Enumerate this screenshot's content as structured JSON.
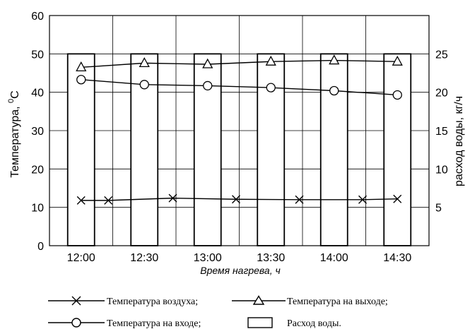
{
  "chart_data": {
    "type": "bar+line",
    "categories": [
      "12:00",
      "12:30",
      "13:00",
      "13:30",
      "14:00",
      "14:30"
    ],
    "xlabel": "Время нагрева, ч",
    "ylabel_left": "Температура, °C",
    "ylabel_left_parts": {
      "before": "Температура, ",
      "sup": "0",
      "after": "C"
    },
    "ylabel_right": "расход воды, кг/ч",
    "ylim_left": [
      0,
      60
    ],
    "yticks_left": [
      "0",
      "10",
      "20",
      "30",
      "40",
      "50",
      "60"
    ],
    "ylim_right": [
      0,
      30
    ],
    "yticks_right": [
      "5",
      "10",
      "15",
      "20",
      "25"
    ],
    "grid": true,
    "bars": {
      "name": "Расход воды.",
      "axis": "right",
      "values": [
        25,
        25,
        25,
        25,
        25,
        25
      ]
    },
    "series": [
      {
        "name": "Температура воздуха;",
        "marker": "x",
        "axis": "left",
        "x": [
          0,
          0.43,
          1.45,
          2.45,
          3.45,
          4.45,
          5
        ],
        "values": [
          11.8,
          11.8,
          12.4,
          12.1,
          12.0,
          12.0,
          12.2
        ]
      },
      {
        "name": "Температура на выходе;",
        "marker": "triangle",
        "axis": "left",
        "x": [
          0,
          1,
          2,
          3,
          4,
          5
        ],
        "values": [
          46.5,
          47.6,
          47.3,
          48.0,
          48.3,
          48.0
        ]
      },
      {
        "name": "Температура на входе;",
        "marker": "circle",
        "axis": "left",
        "x": [
          0,
          1,
          2,
          3,
          4,
          5
        ],
        "values": [
          43.3,
          42.0,
          41.7,
          41.2,
          40.4,
          39.3
        ]
      }
    ],
    "legend": {
      "placement": "bottom",
      "entries": [
        {
          "label": "Температура воздуха;",
          "marker": "x"
        },
        {
          "label": "Температура на выходе;",
          "marker": "triangle"
        },
        {
          "label": "Температура на входе;",
          "marker": "circle"
        },
        {
          "label": "Расход воды.",
          "marker": "box"
        }
      ]
    },
    "colors": {
      "line": "#000000",
      "grid": "#000000",
      "background": "#ffffff"
    }
  }
}
